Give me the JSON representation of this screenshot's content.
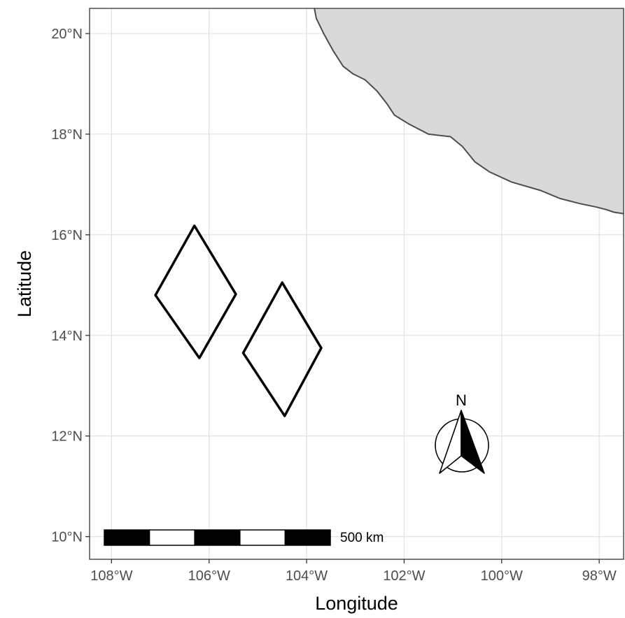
{
  "map": {
    "axes": {
      "x_title": "Longitude",
      "y_title": "Latitude",
      "x_ticks": [
        {
          "value": -108,
          "label": "108°W"
        },
        {
          "value": -106,
          "label": "106°W"
        },
        {
          "value": -104,
          "label": "104°W"
        },
        {
          "value": -102,
          "label": "102°W"
        },
        {
          "value": -100,
          "label": "100°W"
        },
        {
          "value": -98,
          "label": "98°W"
        }
      ],
      "y_ticks": [
        {
          "value": 10,
          "label": "10°N"
        },
        {
          "value": 12,
          "label": "12°N"
        },
        {
          "value": 14,
          "label": "14°N"
        },
        {
          "value": 16,
          "label": "16°N"
        },
        {
          "value": 18,
          "label": "18°N"
        },
        {
          "value": 20,
          "label": "20°N"
        }
      ],
      "lon_range": [
        -108.45,
        -97.5
      ],
      "lat_range": [
        9.55,
        20.5
      ],
      "grid": true
    },
    "coastline": [
      [
        -103.84,
        20.5
      ],
      [
        -103.8,
        20.3
      ],
      [
        -103.65,
        20.0
      ],
      [
        -103.45,
        19.65
      ],
      [
        -103.25,
        19.35
      ],
      [
        -103.05,
        19.2
      ],
      [
        -102.8,
        19.08
      ],
      [
        -102.55,
        18.85
      ],
      [
        -102.35,
        18.6
      ],
      [
        -102.2,
        18.38
      ],
      [
        -101.9,
        18.2
      ],
      [
        -101.5,
        18.0
      ],
      [
        -101.05,
        17.95
      ],
      [
        -100.8,
        17.75
      ],
      [
        -100.55,
        17.45
      ],
      [
        -100.25,
        17.25
      ],
      [
        -99.8,
        17.05
      ],
      [
        -99.2,
        16.88
      ],
      [
        -98.8,
        16.72
      ],
      [
        -98.4,
        16.62
      ],
      [
        -98.05,
        16.55
      ],
      [
        -97.85,
        16.5
      ],
      [
        -97.7,
        16.45
      ],
      [
        -97.5,
        16.42
      ]
    ],
    "land_color": "#d9d9d9",
    "coast_color": "#4d4d4d",
    "survey_areas": [
      {
        "corners": [
          [
            -106.3,
            16.18
          ],
          [
            -105.45,
            14.82
          ],
          [
            -106.2,
            13.55
          ],
          [
            -107.1,
            14.8
          ]
        ]
      },
      {
        "corners": [
          [
            -104.5,
            15.05
          ],
          [
            -103.7,
            13.75
          ],
          [
            -104.45,
            12.4
          ],
          [
            -105.3,
            13.65
          ]
        ]
      }
    ],
    "north_arrow": {
      "label": "N"
    },
    "scale_bar": {
      "label": "500 km",
      "segments": [
        "black",
        "white",
        "black",
        "white",
        "black"
      ]
    }
  }
}
